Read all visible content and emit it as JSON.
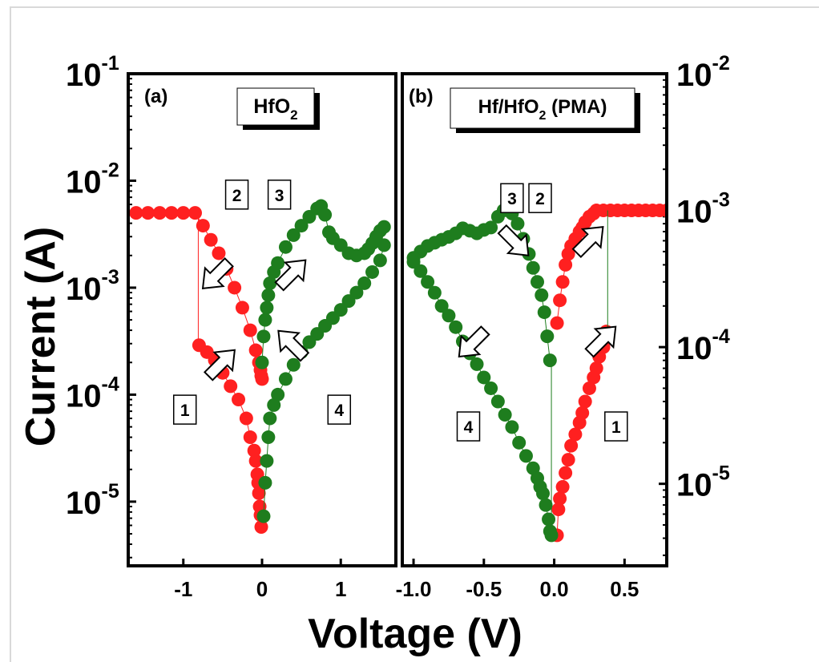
{
  "figure": {
    "ylabel": "Current (A)",
    "xlabel": "Voltage (V)",
    "colors": {
      "red": "#ff2020",
      "green": "#1e7d1e"
    }
  },
  "chart_data": [
    {
      "type": "scatter",
      "panel": "(a)",
      "title": "HfO2",
      "title_main": "HfO",
      "title_sub": "2",
      "xlim": [
        -1.7,
        1.7
      ],
      "ylim_exp": [
        -5.6,
        -1
      ],
      "y_scale": "log",
      "x_ticks": [
        {
          "v": -1,
          "label": "-1"
        },
        {
          "v": 0,
          "label": "0"
        },
        {
          "v": 1,
          "label": "1"
        }
      ],
      "y_ticks": [
        {
          "exp": -5,
          "base": "10",
          "sup": "-5"
        },
        {
          "exp": -4,
          "base": "10",
          "sup": "-4"
        },
        {
          "exp": -3,
          "base": "10",
          "sup": "-3"
        },
        {
          "exp": -2,
          "base": "10",
          "sup": "-2"
        },
        {
          "exp": -1,
          "base": "10",
          "sup": "-1"
        }
      ],
      "step_labels": [
        {
          "text": "1",
          "x": -0.98,
          "y_exp": -4.14
        },
        {
          "text": "2",
          "x": -0.32,
          "y_exp": -2.13
        },
        {
          "text": "3",
          "x": 0.22,
          "y_exp": -2.13
        },
        {
          "text": "4",
          "x": 0.98,
          "y_exp": -4.14
        }
      ],
      "arrows": [
        {
          "x": -0.58,
          "y_exp": -2.88,
          "angle": 135
        },
        {
          "x": -0.52,
          "y_exp": -3.71,
          "angle": -45
        },
        {
          "x": 0.38,
          "y_exp": -2.87,
          "angle": -45
        },
        {
          "x": 0.38,
          "y_exp": -3.53,
          "angle": -135
        }
      ],
      "series": [
        {
          "color": "red",
          "x": [
            -1.6,
            -1.45,
            -1.3,
            -1.15,
            -1.0,
            -0.85,
            -0.75,
            -0.65,
            -0.55,
            -0.45,
            -0.35,
            -0.25,
            -0.15,
            -0.08,
            -0.04,
            -0.02,
            -0.01,
            0.0
          ],
          "y": [
            0.005,
            0.005,
            0.005,
            0.005,
            0.005,
            0.005,
            0.0038,
            0.0028,
            0.0021,
            0.0015,
            0.001,
            0.00065,
            0.0004,
            0.00026,
            0.0002,
            0.00017,
            0.00015,
            0.00014
          ]
        },
        {
          "color": "red",
          "x": [
            -0.8,
            -0.7,
            -0.6,
            -0.5,
            -0.4,
            -0.3,
            -0.2,
            -0.15,
            -0.1,
            -0.08,
            -0.06,
            -0.05,
            -0.04,
            -0.03,
            -0.02,
            -0.01
          ],
          "y": [
            0.00029,
            0.00025,
            0.00021,
            0.00016,
            0.00012,
            9e-05,
            6e-05,
            4e-05,
            3e-05,
            2.4e-05,
            1.8e-05,
            1.5e-05,
            1.2e-05,
            9e-06,
            7.5e-06,
            5.8e-06
          ]
        },
        {
          "color": "green",
          "x": [
            0.0,
            0.02,
            0.04,
            0.06,
            0.08,
            0.1,
            0.15,
            0.2,
            0.3,
            0.4,
            0.5,
            0.6,
            0.7,
            0.75,
            0.8,
            0.85,
            0.9,
            1.0,
            1.1,
            1.2,
            1.3,
            1.35,
            1.4,
            1.45,
            1.5,
            1.55
          ],
          "y": [
            0.0002,
            0.00035,
            0.0005,
            0.00065,
            0.00085,
            0.0011,
            0.0014,
            0.0017,
            0.0024,
            0.0031,
            0.0038,
            0.0046,
            0.0055,
            0.0058,
            0.0048,
            0.0033,
            0.0029,
            0.0025,
            0.0021,
            0.002,
            0.0021,
            0.0023,
            0.0026,
            0.003,
            0.0034,
            0.0037
          ]
        },
        {
          "color": "green",
          "x": [
            1.55,
            1.5,
            1.4,
            1.3,
            1.2,
            1.1,
            1.0,
            0.9,
            0.8,
            0.7,
            0.6,
            0.5,
            0.4,
            0.3,
            0.2,
            0.15,
            0.1,
            0.08,
            0.06,
            0.04,
            0.02
          ],
          "y": [
            0.0025,
            0.0018,
            0.0014,
            0.0011,
            0.0009,
            0.00075,
            0.00062,
            0.00052,
            0.00044,
            0.00037,
            0.00031,
            0.00025,
            0.00019,
            0.00014,
            0.0001,
            8e-05,
            6e-05,
            4e-05,
            2.4e-05,
            1.5e-05,
            7.3e-06
          ]
        }
      ]
    },
    {
      "type": "scatter",
      "panel": "(b)",
      "title": "Hf/HfO2 (PMA)",
      "title_main": "Hf/HfO",
      "title_sub": "2",
      "title_tail": " (PMA)",
      "xlim": [
        -1.08,
        0.8
      ],
      "ylim_exp": [
        -5.6,
        -2
      ],
      "y_scale": "log",
      "x_ticks": [
        {
          "v": -1.0,
          "label": "-1.0"
        },
        {
          "v": -0.5,
          "label": "-0.5"
        },
        {
          "v": 0.0,
          "label": "0.0"
        },
        {
          "v": 0.5,
          "label": "0.5"
        }
      ],
      "y_ticks": [
        {
          "exp": -5,
          "base": "10",
          "sup": "-5"
        },
        {
          "exp": -4,
          "base": "10",
          "sup": "-4"
        },
        {
          "exp": -3,
          "base": "10",
          "sup": "-3"
        },
        {
          "exp": -2,
          "base": "10",
          "sup": "-2"
        }
      ],
      "step_labels": [
        {
          "text": "3",
          "x": -0.3,
          "y_exp": -2.91
        },
        {
          "text": "2",
          "x": -0.1,
          "y_exp": -2.91
        },
        {
          "text": "4",
          "x": -0.61,
          "y_exp": -4.58
        },
        {
          "text": "1",
          "x": 0.44,
          "y_exp": -4.58
        }
      ],
      "arrows": [
        {
          "x": -0.28,
          "y_exp": -3.23,
          "angle": 45
        },
        {
          "x": 0.25,
          "y_exp": -3.22,
          "angle": -45
        },
        {
          "x": -0.58,
          "y_exp": -3.97,
          "angle": 135
        },
        {
          "x": 0.34,
          "y_exp": -3.95,
          "angle": -45
        }
      ],
      "series": [
        {
          "color": "red",
          "x": [
            0.02,
            0.04,
            0.06,
            0.08,
            0.1,
            0.12,
            0.15,
            0.18,
            0.2,
            0.22,
            0.25,
            0.28,
            0.3,
            0.35,
            0.4,
            0.45,
            0.5,
            0.55,
            0.6,
            0.65,
            0.7,
            0.75,
            0.8
          ],
          "y": [
            0.00015,
            0.00022,
            0.0003,
            0.0004,
            0.00048,
            0.00055,
            0.00062,
            0.0007,
            0.00075,
            0.00082,
            0.0009,
            0.00095,
            0.001,
            0.001,
            0.001,
            0.001,
            0.001,
            0.001,
            0.001,
            0.001,
            0.001,
            0.001,
            0.001
          ]
        },
        {
          "color": "red",
          "x": [
            0.37,
            0.35,
            0.32,
            0.3,
            0.28,
            0.25,
            0.22,
            0.2,
            0.18,
            0.15,
            0.12,
            0.1,
            0.08,
            0.06,
            0.04,
            0.03,
            0.02
          ],
          "y": [
            0.00013,
            0.0001,
            8.5e-05,
            7e-05,
            6e-05,
            5e-05,
            4e-05,
            3.3e-05,
            2.8e-05,
            2.3e-05,
            1.9e-05,
            1.5e-05,
            1.2e-05,
            9.5e-06,
            7.8e-06,
            6.5e-06,
            4.2e-06
          ]
        },
        {
          "color": "green",
          "x": [
            -0.03,
            -0.05,
            -0.07,
            -0.09,
            -0.12,
            -0.15,
            -0.18,
            -0.22,
            -0.26,
            -0.3,
            -0.33,
            -0.36,
            -0.4,
            -0.45,
            -0.5,
            -0.55,
            -0.6,
            -0.65,
            -0.7,
            -0.75,
            -0.8,
            -0.85,
            -0.9,
            -0.95,
            -1.0
          ],
          "y": [
            8e-05,
            0.00012,
            0.00018,
            0.00024,
            0.0003,
            0.00038,
            0.00048,
            0.00062,
            0.0008,
            0.00095,
            0.001,
            0.001,
            0.0009,
            0.00075,
            0.00072,
            0.00068,
            0.00071,
            0.00074,
            0.00068,
            0.00064,
            0.00061,
            0.00058,
            0.00055,
            0.0005,
            0.00045
          ]
        },
        {
          "color": "green",
          "x": [
            -1.0,
            -0.95,
            -0.9,
            -0.85,
            -0.8,
            -0.75,
            -0.7,
            -0.65,
            -0.6,
            -0.55,
            -0.5,
            -0.45,
            -0.4,
            -0.35,
            -0.3,
            -0.25,
            -0.2,
            -0.15,
            -0.12,
            -0.1,
            -0.08,
            -0.06,
            -0.04,
            -0.03,
            -0.02
          ],
          "y": [
            0.00042,
            0.00036,
            0.0003,
            0.00025,
            0.0002,
            0.00017,
            0.00014,
            0.00011,
            9e-05,
            7.5e-05,
            6e-05,
            5e-05,
            4e-05,
            3.2e-05,
            2.6e-05,
            2e-05,
            1.6e-05,
            1.3e-05,
            1.1e-05,
            9.5e-06,
            8.5e-06,
            7e-06,
            5.5e-06,
            4.5e-06,
            4.2e-06
          ]
        }
      ]
    }
  ]
}
